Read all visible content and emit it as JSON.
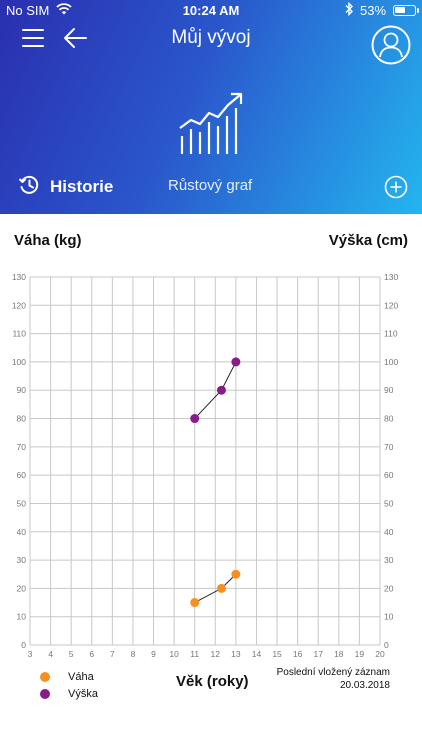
{
  "status_bar": {
    "carrier": "No SIM",
    "time": "10:24 AM",
    "battery_percent": "53%",
    "battery_level": 0.53
  },
  "header": {
    "title": "Můj vývoj",
    "history_label": "Historie",
    "growth_tab_label": "Růstový graf"
  },
  "chart_data": {
    "type": "line",
    "ylabel_left": "Váha (kg)",
    "ylabel_right": "Výška (cm)",
    "xlabel": "Věk (roky)",
    "xlim": [
      3,
      20
    ],
    "ylim": [
      0,
      130
    ],
    "x_ticks": [
      3,
      4,
      5,
      6,
      7,
      8,
      9,
      10,
      11,
      12,
      13,
      14,
      15,
      16,
      17,
      18,
      19,
      20
    ],
    "y_ticks": [
      0,
      10,
      20,
      30,
      40,
      50,
      60,
      70,
      80,
      90,
      100,
      110,
      120,
      130
    ],
    "grid": true,
    "series": [
      {
        "name": "Váha",
        "color": "#f7901e",
        "points": [
          {
            "x": 11.0,
            "y": 15
          },
          {
            "x": 12.3,
            "y": 20
          },
          {
            "x": 13.0,
            "y": 25
          }
        ]
      },
      {
        "name": "Výška",
        "color": "#8a1b8a",
        "points": [
          {
            "x": 11.0,
            "y": 80
          },
          {
            "x": 12.3,
            "y": 90
          },
          {
            "x": 13.0,
            "y": 100
          }
        ]
      }
    ]
  },
  "legend": {
    "items": [
      {
        "label": "Váha",
        "color": "#f7901e"
      },
      {
        "label": "Výška",
        "color": "#8a1b8a"
      }
    ]
  },
  "last_record": {
    "label": "Poslední vložený záznam",
    "date": "20.03.2018"
  }
}
